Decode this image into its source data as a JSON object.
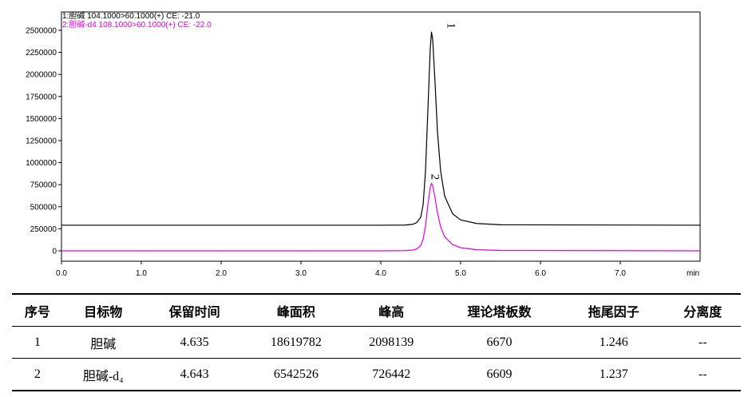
{
  "chart_data": {
    "type": "line",
    "legend_lines": [
      "1:胆碱 104.1000>60.1000(+) CE: -21.0",
      "2:胆碱-d4 108.1000>60.1000(+) CE: -22.0"
    ],
    "x_label": "min",
    "annotations": [
      "1",
      "2"
    ],
    "x": [
      0,
      4.0,
      4.3,
      4.4,
      4.45,
      4.5,
      4.53,
      4.56,
      4.59,
      4.62,
      4.635,
      4.65,
      4.68,
      4.71,
      4.75,
      4.8,
      4.9,
      5.0,
      5.2,
      5.5,
      8.0
    ],
    "series": [
      {
        "name": "1",
        "color": "#000000",
        "values": [
          290000,
          290000,
          292000,
          300000,
          320000,
          380000,
          520000,
          900000,
          1600000,
          2300000,
          2480000,
          2400000,
          1900000,
          1350000,
          900000,
          620000,
          420000,
          350000,
          310000,
          295000,
          290000
        ]
      },
      {
        "name": "2",
        "color": "#e000e0",
        "values": [
          0,
          0,
          2000,
          8000,
          20000,
          60000,
          130000,
          280000,
          520000,
          720000,
          765000,
          740000,
          600000,
          430000,
          270000,
          160000,
          70000,
          35000,
          12000,
          4000,
          0
        ]
      }
    ],
    "xlim": [
      0,
      8.0
    ],
    "xticks": [
      {
        "value": 0,
        "label": "0.0"
      },
      {
        "value": 1,
        "label": "1.0"
      },
      {
        "value": 2,
        "label": "2.0"
      },
      {
        "value": 3,
        "label": "3.0"
      },
      {
        "value": 4,
        "label": "4.0"
      },
      {
        "value": 5,
        "label": "5.0"
      },
      {
        "value": 6,
        "label": "6.0"
      },
      {
        "value": 7,
        "label": "7.0"
      }
    ],
    "ylim": [
      -118000,
      2708000
    ],
    "yticks": [
      0,
      250000,
      500000,
      750000,
      1000000,
      1250000,
      1500000,
      1750000,
      2000000,
      2250000,
      2500000
    ]
  },
  "table": {
    "header": [
      "序号",
      "目标物",
      "保留时间",
      "峰面积",
      "峰高",
      "理论塔板数",
      "拖尾因子",
      "分离度"
    ],
    "rows": [
      [
        1,
        "胆碱",
        4.635,
        18619782,
        2098139,
        6670,
        1.246,
        "--"
      ],
      [
        2,
        "胆碱-d₄",
        4.643,
        6542526,
        726442,
        6609,
        1.237,
        "--"
      ]
    ]
  }
}
